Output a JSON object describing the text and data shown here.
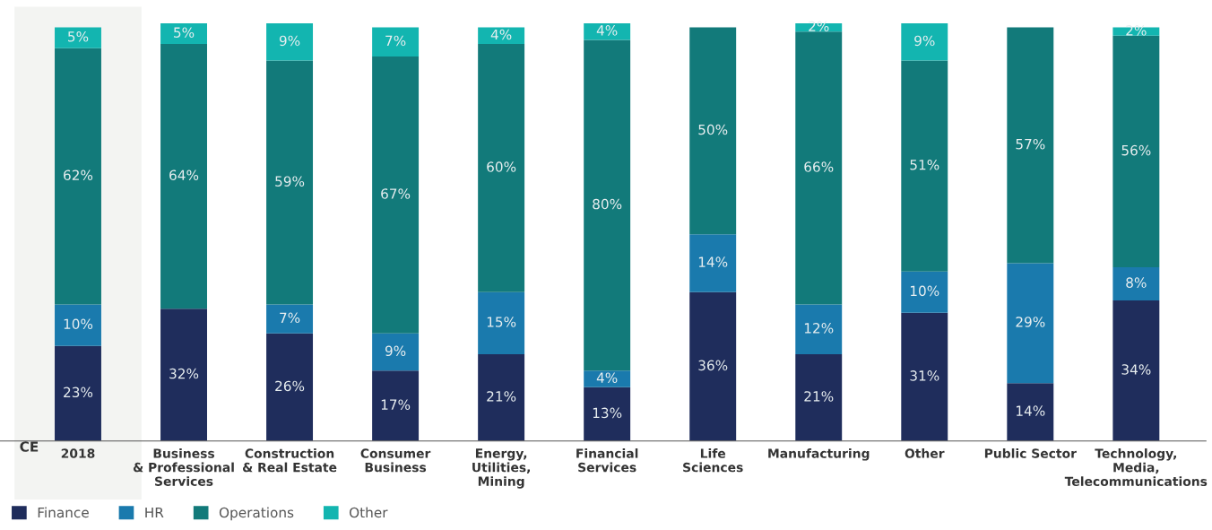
{
  "chart_data": {
    "type": "bar",
    "stacked": true,
    "categories": [
      "2018",
      "Business\n& Professional\nServices",
      "Construction\n& Real Estate",
      "Consumer\nBusiness",
      "Energy,\nUtilities,\nMining",
      "Financial\nServices",
      "Life\nSciences",
      "Manufacturing",
      "Other",
      "Public Sector",
      "Technology,\nMedia,\nTelecommunications"
    ],
    "series": [
      {
        "name": "Finance",
        "color": "#1f2d5c",
        "values": [
          23,
          32,
          26,
          17,
          21,
          13,
          36,
          21,
          31,
          14,
          34
        ],
        "value_labels": [
          "23%",
          "32%",
          "26%",
          "17%",
          "21%",
          "13%",
          "36%",
          "21%",
          "31%",
          "14%",
          "34%"
        ]
      },
      {
        "name": "HR",
        "color": "#1a7aad",
        "values": [
          10,
          null,
          7,
          9,
          15,
          4,
          14,
          12,
          10,
          29,
          8
        ],
        "value_labels": [
          "10%",
          null,
          "7%",
          "9%",
          "15%",
          "4%",
          "14%",
          "12%",
          "10%",
          "29%",
          "8%"
        ]
      },
      {
        "name": "Operations",
        "color": "#127a7a",
        "values": [
          62,
          64,
          59,
          67,
          60,
          80,
          50,
          66,
          51,
          57,
          56
        ],
        "value_labels": [
          "62%",
          "64%",
          "59%",
          "67%",
          "60%",
          "80%",
          "50%",
          "66%",
          "51%",
          "57%",
          "56%"
        ]
      },
      {
        "name": "Other",
        "color": "#13b5b0",
        "values": [
          5,
          5,
          9,
          7,
          4,
          4,
          null,
          2,
          9,
          null,
          2
        ],
        "value_labels": [
          "5%",
          "5%",
          "9%",
          "7%",
          "4%",
          "4%",
          null,
          "2%",
          "9%",
          null,
          "2%"
        ]
      }
    ],
    "bands": [
      {
        "axis": "x",
        "from": "2018",
        "to": "2018",
        "color": "#f3f4f2"
      }
    ],
    "annotations": [
      "CE"
    ],
    "legend": "bottom left",
    "grid": false
  }
}
